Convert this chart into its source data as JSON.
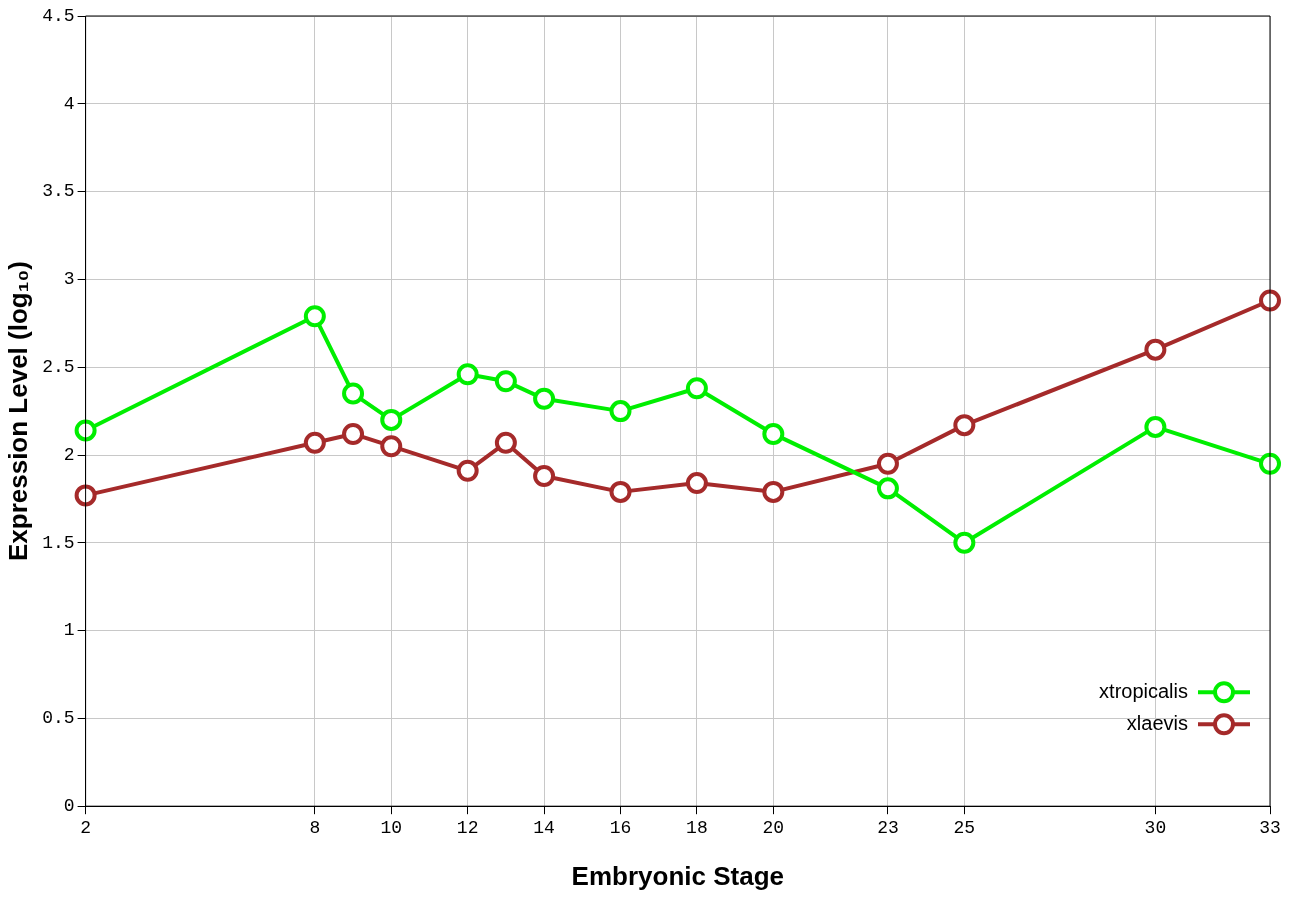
{
  "chart_data": {
    "type": "line",
    "xlabel": "Embryonic Stage",
    "ylabel": "Expression Level (log₁₀)",
    "x": [
      2,
      8,
      9,
      10,
      12,
      13,
      14,
      16,
      18,
      20,
      23,
      25,
      30,
      33
    ],
    "series": [
      {
        "name": "xtropicalis",
        "color": "#00ee00",
        "values": [
          2.14,
          2.79,
          2.35,
          2.2,
          2.46,
          2.42,
          2.32,
          2.25,
          2.38,
          2.12,
          1.81,
          1.5,
          2.16,
          1.95
        ]
      },
      {
        "name": "xlaevis",
        "color": "#a52a2a",
        "values": [
          1.77,
          2.07,
          2.12,
          2.05,
          1.91,
          2.07,
          1.88,
          1.79,
          1.84,
          1.79,
          1.95,
          2.17,
          2.6,
          2.88
        ]
      }
    ],
    "xlim": [
      2,
      33
    ],
    "xticks": [
      2,
      8,
      10,
      12,
      14,
      16,
      18,
      20,
      23,
      25,
      30,
      33
    ],
    "ylim": [
      0,
      4.5
    ],
    "yticks": [
      0,
      0.5,
      1,
      1.5,
      2,
      2.5,
      3,
      3.5,
      4,
      4.5
    ],
    "grid": true,
    "legend": "bottom right",
    "marker": "circle",
    "line_style": "solid"
  }
}
